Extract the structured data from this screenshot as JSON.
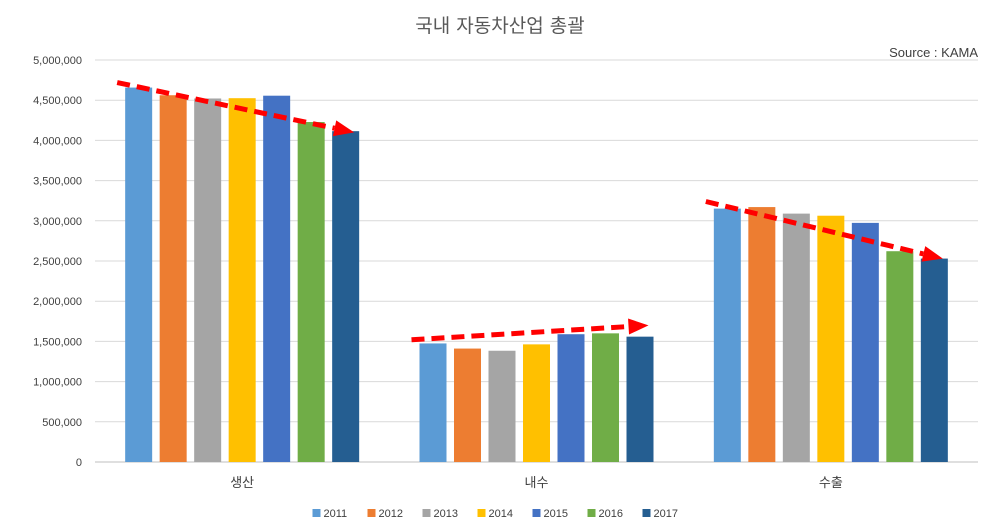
{
  "chart_data": {
    "type": "bar",
    "title": "국내 자동차산업 총괄",
    "source": "Source : KAMA",
    "categories": [
      "생산",
      "내수",
      "수출"
    ],
    "series": [
      {
        "name": "2011",
        "color": "#5b9bd5",
        "values": [
          4657094,
          1474637,
          3151708
        ]
      },
      {
        "name": "2012",
        "color": "#ed7d31",
        "values": [
          4561766,
          1410857,
          3170634
        ]
      },
      {
        "name": "2013",
        "color": "#a5a5a5",
        "values": [
          4521429,
          1383711,
          3089283
        ]
      },
      {
        "name": "2014",
        "color": "#ffc000",
        "values": [
          4524932,
          1463110,
          3063204
        ]
      },
      {
        "name": "2015",
        "color": "#4472c4",
        "values": [
          4555957,
          1589393,
          2974114
        ]
      },
      {
        "name": "2016",
        "color": "#70ad47",
        "values": [
          4228509,
          1600154,
          2621715
        ]
      },
      {
        "name": "2017",
        "color": "#255e91",
        "values": [
          4114913,
          1558991,
          2530194
        ]
      }
    ],
    "ylim": [
      0,
      5000000
    ],
    "yticks": [
      "0",
      "500,000",
      "1,000,000",
      "1,500,000",
      "2,000,000",
      "2,500,000",
      "3,000,000",
      "3,500,000",
      "4,000,000",
      "4,500,000",
      "5,000,000"
    ],
    "grid": true,
    "legend_position": "bottom",
    "trend_arrows": [
      {
        "category": "생산",
        "from_value": 4720000,
        "to_value": 4100000,
        "color": "#ff0000"
      },
      {
        "category": "내수",
        "from_value": 1520000,
        "to_value": 1700000,
        "color": "#ff0000"
      },
      {
        "category": "수출",
        "from_value": 3240000,
        "to_value": 2530000,
        "color": "#ff0000"
      }
    ]
  }
}
